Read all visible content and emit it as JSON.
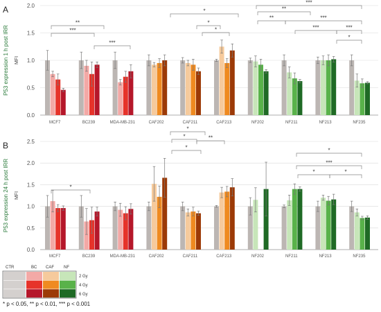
{
  "chart_data": [
    {
      "panel": "A",
      "type": "bar",
      "ylabel": "MFI",
      "side_label": "P53 expression 1 h post IRR",
      "ylim": [
        0,
        2
      ],
      "yticks": [
        "0.0",
        "0.5",
        "1.0",
        "1.5",
        "2.0"
      ],
      "categories": [
        "MCF7",
        "BC239",
        "MDA-MB-231",
        "CAF202",
        "CAF211",
        "CAF213",
        "NF202",
        "NF211",
        "NF213",
        "NF235"
      ],
      "groups": [
        "BC",
        "BC",
        "BC",
        "CAF",
        "CAF",
        "CAF",
        "NF",
        "NF",
        "NF",
        "NF"
      ],
      "values": [
        [
          1.0,
          0.75,
          0.65,
          0.46
        ],
        [
          1.0,
          0.9,
          0.75,
          0.92
        ],
        [
          1.0,
          0.6,
          0.7,
          0.8
        ],
        [
          1.0,
          0.92,
          0.95,
          1.0
        ],
        [
          1.0,
          0.95,
          0.92,
          0.8
        ],
        [
          1.0,
          1.25,
          0.95,
          1.18
        ],
        [
          1.0,
          0.98,
          0.92,
          0.8
        ],
        [
          1.0,
          0.78,
          0.67,
          0.62
        ],
        [
          1.0,
          1.0,
          1.0,
          1.02
        ],
        [
          1.0,
          0.63,
          0.58,
          0.59
        ]
      ],
      "errors": [
        [
          0.18,
          0.05,
          0.1,
          0.03
        ],
        [
          0.15,
          0.1,
          0.22,
          0.05
        ],
        [
          0.15,
          0.05,
          0.1,
          0.12
        ],
        [
          0.1,
          0.04,
          0.08,
          0.1
        ],
        [
          0.05,
          0.05,
          0.1,
          0.06
        ],
        [
          0.02,
          0.12,
          0.08,
          0.12
        ],
        [
          0.04,
          0.1,
          0.1,
          0.03
        ],
        [
          0.1,
          0.1,
          0.1,
          0.03
        ],
        [
          0.06,
          0.08,
          0.1,
          0.05
        ],
        [
          0.1,
          0.12,
          0.08,
          0.02
        ]
      ],
      "significance": [
        {
          "label": "**",
          "from": 0,
          "to": 2
        },
        {
          "label": "***",
          "from": 0,
          "to": 1
        },
        {
          "label": "***",
          "from": 1,
          "to": 2
        },
        {
          "label": "*",
          "from": 3,
          "to": 5
        },
        {
          "label": "*",
          "from": 4,
          "to": 5
        },
        {
          "label": "*",
          "from": 4,
          "to": 5
        },
        {
          "label": "***",
          "from": 6,
          "to": 9
        },
        {
          "label": "**",
          "from": 6,
          "to": 8
        },
        {
          "label": "**",
          "from": 6,
          "to": 7
        },
        {
          "label": "***",
          "from": 7,
          "to": 9
        },
        {
          "label": "***",
          "from": 6,
          "to": 8
        },
        {
          "label": "***",
          "from": 8,
          "to": 9
        },
        {
          "label": "*",
          "from": 8,
          "to": 9
        }
      ]
    },
    {
      "panel": "B",
      "type": "bar",
      "ylabel": "MFI",
      "side_label": "P53 expression 24 h post IRR",
      "ylim": [
        0,
        2.5
      ],
      "yticks": [
        "0.0",
        "0.5",
        "1.0",
        "1.5",
        "2.0",
        "2.5"
      ],
      "categories": [
        "MCF7",
        "BC239",
        "MDA-MB-231",
        "CAF202",
        "CAF211",
        "CAF213",
        "NF202",
        "NF211",
        "NF213",
        "NF235"
      ],
      "groups": [
        "BC",
        "BC",
        "BC",
        "CAF",
        "CAF",
        "CAF",
        "NF",
        "NF",
        "NF",
        "NF"
      ],
      "values": [
        [
          1.0,
          1.12,
          0.96,
          0.96
        ],
        [
          1.0,
          0.65,
          0.68,
          0.88
        ],
        [
          1.0,
          0.92,
          0.84,
          0.94
        ],
        [
          1.0,
          1.52,
          1.22,
          1.66
        ],
        [
          1.0,
          0.86,
          0.88,
          0.84
        ],
        [
          1.0,
          1.32,
          1.34,
          1.44
        ],
        [
          1.0,
          1.15,
          null,
          1.4
        ],
        [
          1.0,
          1.14,
          1.4,
          1.4
        ],
        [
          1.0,
          1.2,
          1.13,
          1.16
        ],
        [
          1.0,
          0.86,
          0.73,
          0.74
        ]
      ],
      "errors": [
        [
          0.25,
          0.25,
          0.08,
          0.05
        ],
        [
          0.25,
          0.3,
          0.3,
          0.1
        ],
        [
          0.1,
          0.15,
          0.15,
          0.12
        ],
        [
          0.1,
          0.4,
          0.25,
          0.45
        ],
        [
          0.1,
          0.08,
          0.1,
          0.05
        ],
        [
          0.02,
          0.12,
          0.12,
          0.2
        ],
        [
          0.2,
          0.28,
          null,
          0.62
        ],
        [
          0.03,
          0.12,
          0.12,
          0.05
        ],
        [
          0.12,
          0.06,
          0.1,
          0.12
        ],
        [
          0.12,
          0.08,
          0.04,
          0.04
        ]
      ],
      "significance": [
        {
          "label": "*",
          "from": 0,
          "to": 1
        },
        {
          "label": "*",
          "from": 3,
          "to": 4
        },
        {
          "label": "*",
          "from": 3,
          "to": 4
        },
        {
          "label": "*",
          "from": 3,
          "to": 4
        },
        {
          "label": "**",
          "from": 4,
          "to": 5
        },
        {
          "label": "*",
          "from": 7,
          "to": 9
        },
        {
          "label": "***",
          "from": 7,
          "to": 9
        },
        {
          "label": "*",
          "from": 7,
          "to": 8
        },
        {
          "label": "*",
          "from": 8,
          "to": 9
        }
      ]
    }
  ],
  "legend": {
    "columns": [
      "CTR",
      "BC",
      "CAF",
      "NF"
    ],
    "rows": [
      "2 Gy",
      "4 Gy",
      "6 Gy"
    ]
  },
  "footnote": "* p < 0.05, ** p < 0.01, *** p < 0.001",
  "colors": {
    "ctr": "#bcb6b3",
    "BC": [
      "#f3a9a6",
      "#e6332a",
      "#b5172a"
    ],
    "CAF": [
      "#f6ca9c",
      "#ef8a20",
      "#9c3a07"
    ],
    "NF": [
      "#c7e6b9",
      "#59b24a",
      "#1f6a25"
    ],
    "panel_label": "#222222",
    "side_label": "#2a7a3a"
  }
}
